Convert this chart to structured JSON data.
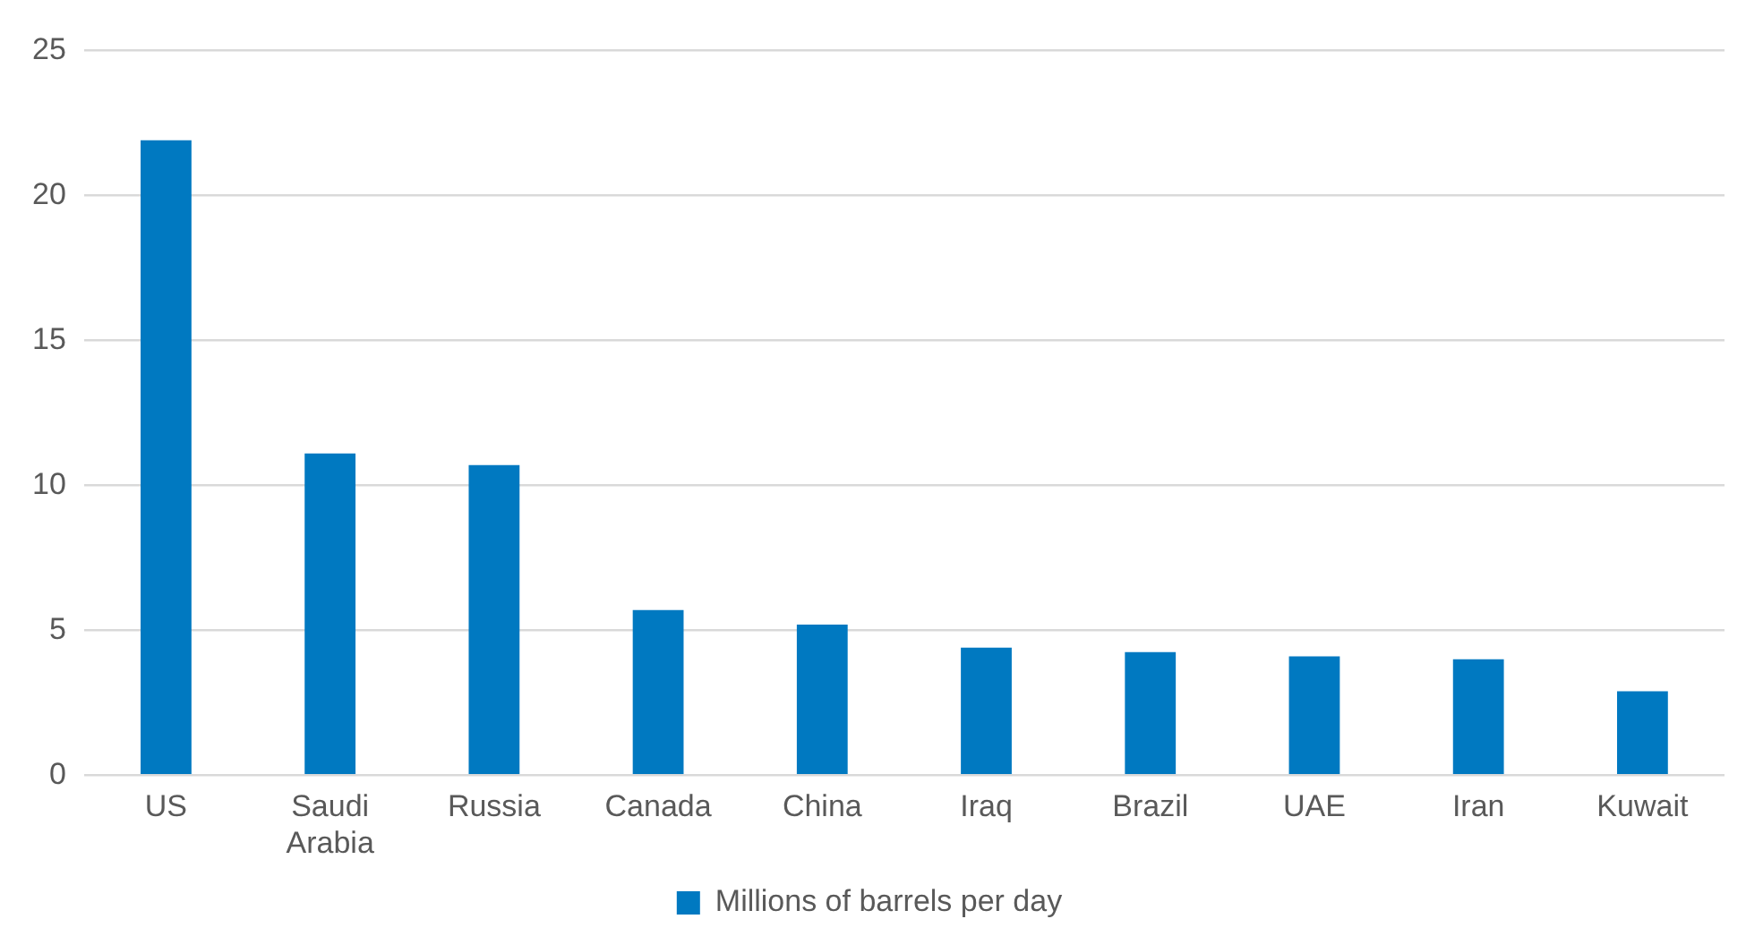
{
  "chart_data": {
    "type": "bar",
    "categories": [
      "US",
      "Saudi Arabia",
      "Russia",
      "Canada",
      "China",
      "Iraq",
      "Brazil",
      "UAE",
      "Iran",
      "Kuwait"
    ],
    "series": [
      {
        "name": "Millions of barrels per day",
        "color": "#0079c1",
        "values": [
          21.9,
          11.1,
          10.7,
          5.7,
          5.2,
          4.4,
          4.25,
          4.1,
          4.0,
          2.9
        ]
      }
    ],
    "ylim": [
      0,
      25
    ],
    "yticks": [
      0,
      5,
      10,
      15,
      20,
      25
    ],
    "grid": "y",
    "legend": "bottom"
  }
}
